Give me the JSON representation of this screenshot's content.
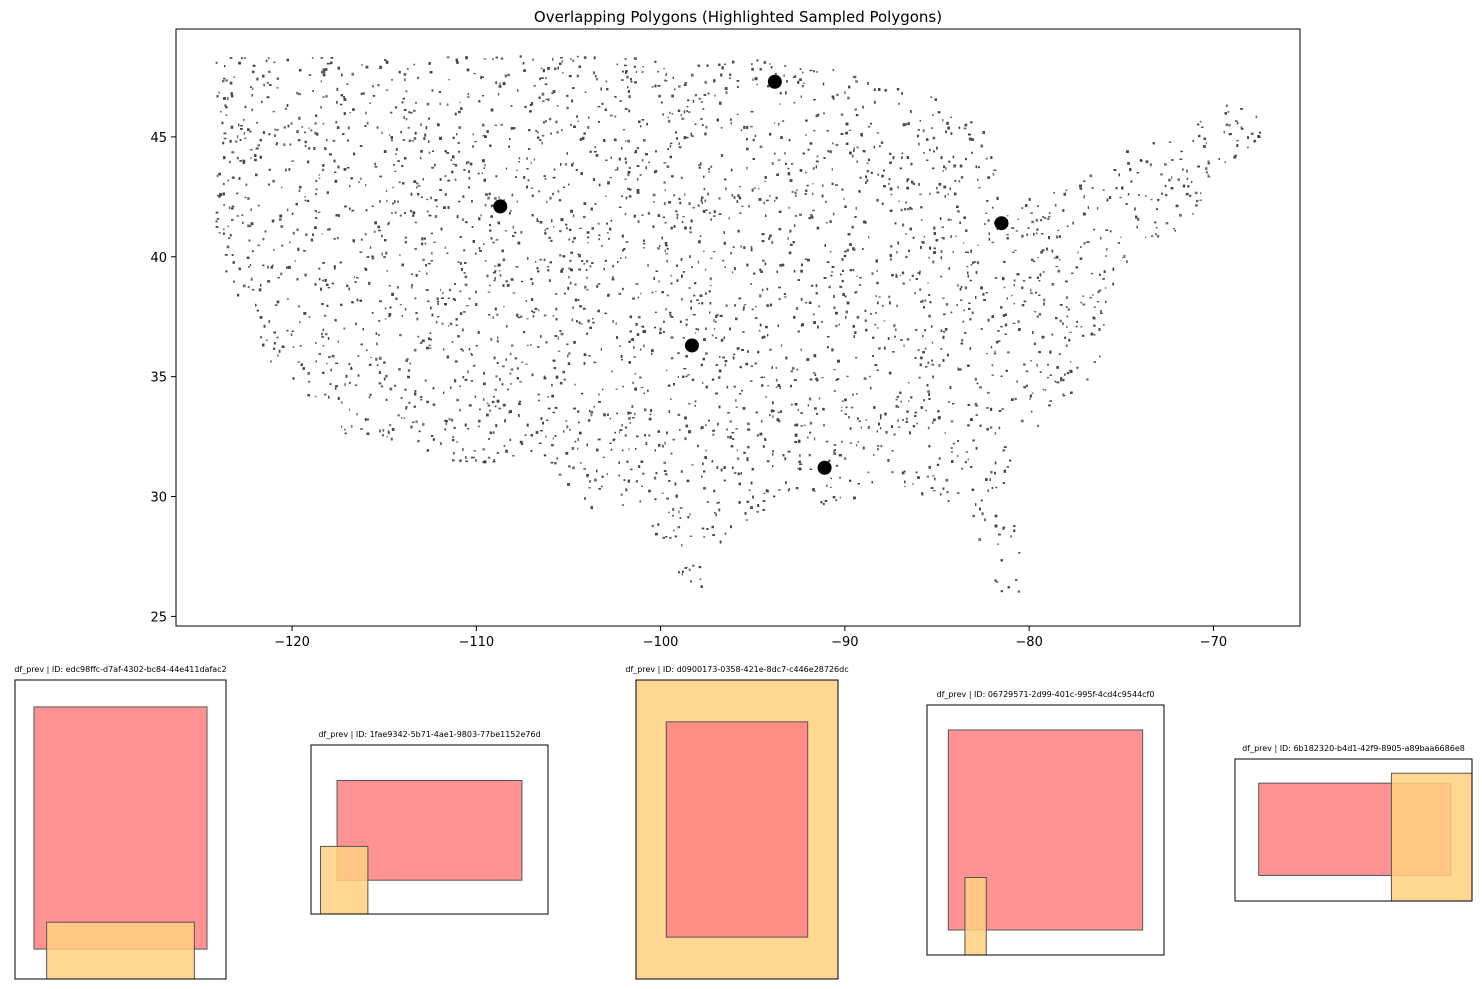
{
  "chart_data": [
    {
      "type": "scatter",
      "title": "Overlapping Polygons (Highlighted Sampled Polygons)",
      "xlabel": "",
      "ylabel": "",
      "xlim": [
        -126.3,
        -65.3
      ],
      "ylim": [
        24.6,
        49.5
      ],
      "xticks": [
        -120,
        -110,
        -100,
        -90,
        -80,
        -70
      ],
      "yticks": [
        25,
        30,
        35,
        40,
        45
      ],
      "xtick_labels": [
        "−120",
        "−110",
        "−100",
        "−90",
        "−80",
        "−70"
      ],
      "ytick_labels": [
        "25",
        "30",
        "35",
        "40",
        "45"
      ],
      "grid": false,
      "point_color": "#444444",
      "highlight_color": "#000000",
      "highlighted": [
        {
          "x": -93.8,
          "y": 47.3
        },
        {
          "x": -108.7,
          "y": 42.1
        },
        {
          "x": -81.5,
          "y": 41.4
        },
        {
          "x": -98.3,
          "y": 36.3
        },
        {
          "x": -91.1,
          "y": 31.2
        }
      ],
      "region_outline_lonlat": [
        [
          -124.5,
          48.4
        ],
        [
          -122.5,
          48.4
        ],
        [
          -110,
          48.4
        ],
        [
          -100,
          48.4
        ],
        [
          -95.2,
          48.4
        ],
        [
          -89.6,
          47.7
        ],
        [
          -84.5,
          46.5
        ],
        [
          -82.3,
          45.2
        ],
        [
          -81.8,
          43.8
        ],
        [
          -81.5,
          42.6
        ],
        [
          -78.9,
          42.9
        ],
        [
          -76.3,
          43.6
        ],
        [
          -75.2,
          44.6
        ],
        [
          -71.5,
          45.0
        ],
        [
          -69.8,
          46.6
        ],
        [
          -68.0,
          46.5
        ],
        [
          -67.0,
          45.0
        ],
        [
          -70.2,
          43.6
        ],
        [
          -70.6,
          41.8
        ],
        [
          -72.0,
          41.1
        ],
        [
          -74.0,
          40.6
        ],
        [
          -74.1,
          39.5
        ],
        [
          -75.3,
          38.8
        ],
        [
          -75.9,
          37.3
        ],
        [
          -75.6,
          35.8
        ],
        [
          -77.0,
          34.6
        ],
        [
          -79.0,
          33.2
        ],
        [
          -81.0,
          31.8
        ],
        [
          -81.4,
          30.2
        ],
        [
          -80.1,
          26.9
        ],
        [
          -80.9,
          25.4
        ],
        [
          -82.0,
          26.4
        ],
        [
          -82.8,
          28.0
        ],
        [
          -83.3,
          29.9
        ],
        [
          -84.8,
          29.8
        ],
        [
          -87.0,
          30.4
        ],
        [
          -89.0,
          30.4
        ],
        [
          -89.8,
          29.7
        ],
        [
          -92.0,
          29.6
        ],
        [
          -94.0,
          29.7
        ],
        [
          -95.5,
          28.8
        ],
        [
          -97.3,
          27.6
        ],
        [
          -97.5,
          26.2
        ],
        [
          -99.0,
          26.6
        ],
        [
          -100.0,
          28.0
        ],
        [
          -101.7,
          29.8
        ],
        [
          -103.2,
          29.1
        ],
        [
          -104.5,
          30.0
        ],
        [
          -106.5,
          31.8
        ],
        [
          -108.2,
          31.5
        ],
        [
          -111.0,
          31.3
        ],
        [
          -114.8,
          32.5
        ],
        [
          -117.1,
          32.6
        ],
        [
          -118.5,
          34.0
        ],
        [
          -120.6,
          34.6
        ],
        [
          -121.9,
          36.6
        ],
        [
          -122.5,
          37.8
        ],
        [
          -123.8,
          39.5
        ],
        [
          -124.3,
          42.0
        ],
        [
          -124.1,
          44.8
        ],
        [
          -124.0,
          46.3
        ],
        [
          -124.7,
          48.3
        ]
      ]
    },
    {
      "type": "polygon-panel",
      "title": "df_prev | ID: edc98ffc-d7af-4302-bc84-44e411dafac2",
      "rects": [
        {
          "color": "#ff8080",
          "x0": 0.09,
          "x1": 0.91,
          "y0": 0.09,
          "y1": 0.9
        },
        {
          "color": "#ffd080",
          "x0": 0.15,
          "x1": 0.85,
          "y0": 0.81,
          "y1": 1.0
        }
      ]
    },
    {
      "type": "polygon-panel",
      "title": "df_prev | ID: 1fae9342-5b71-4ae1-9803-77be1152e76d",
      "rects": [
        {
          "color": "#ff8080",
          "x0": 0.11,
          "x1": 0.89,
          "y0": 0.21,
          "y1": 0.8
        },
        {
          "color": "#ffd080",
          "x0": 0.04,
          "x1": 0.24,
          "y0": 0.6,
          "y1": 1.0
        }
      ]
    },
    {
      "type": "polygon-panel",
      "title": "df_prev | ID: d0900173-0358-421e-8dc7-c446e28726dc",
      "rects": [
        {
          "color": "#ffd080",
          "x0": 0.0,
          "x1": 1.0,
          "y0": 0.0,
          "y1": 1.0
        },
        {
          "color": "#ff8080",
          "x0": 0.15,
          "x1": 0.85,
          "y0": 0.14,
          "y1": 0.86
        }
      ]
    },
    {
      "type": "polygon-panel",
      "title": "df_prev | ID: 06729571-2d99-401c-995f-4cd4c9544cf0",
      "rects": [
        {
          "color": "#ff8080",
          "x0": 0.09,
          "x1": 0.91,
          "y0": 0.1,
          "y1": 0.9
        },
        {
          "color": "#ffd080",
          "x0": 0.16,
          "x1": 0.25,
          "y0": 0.69,
          "y1": 1.0
        }
      ]
    },
    {
      "type": "polygon-panel",
      "title": "df_prev | ID: 6b182320-b4d1-42f9-8905-a89baa6686e8",
      "rects": [
        {
          "color": "#ff8080",
          "x0": 0.1,
          "x1": 0.91,
          "y0": 0.17,
          "y1": 0.82
        },
        {
          "color": "#ffd080",
          "x0": 0.66,
          "x1": 1.0,
          "y0": 0.1,
          "y1": 1.0
        }
      ]
    }
  ]
}
